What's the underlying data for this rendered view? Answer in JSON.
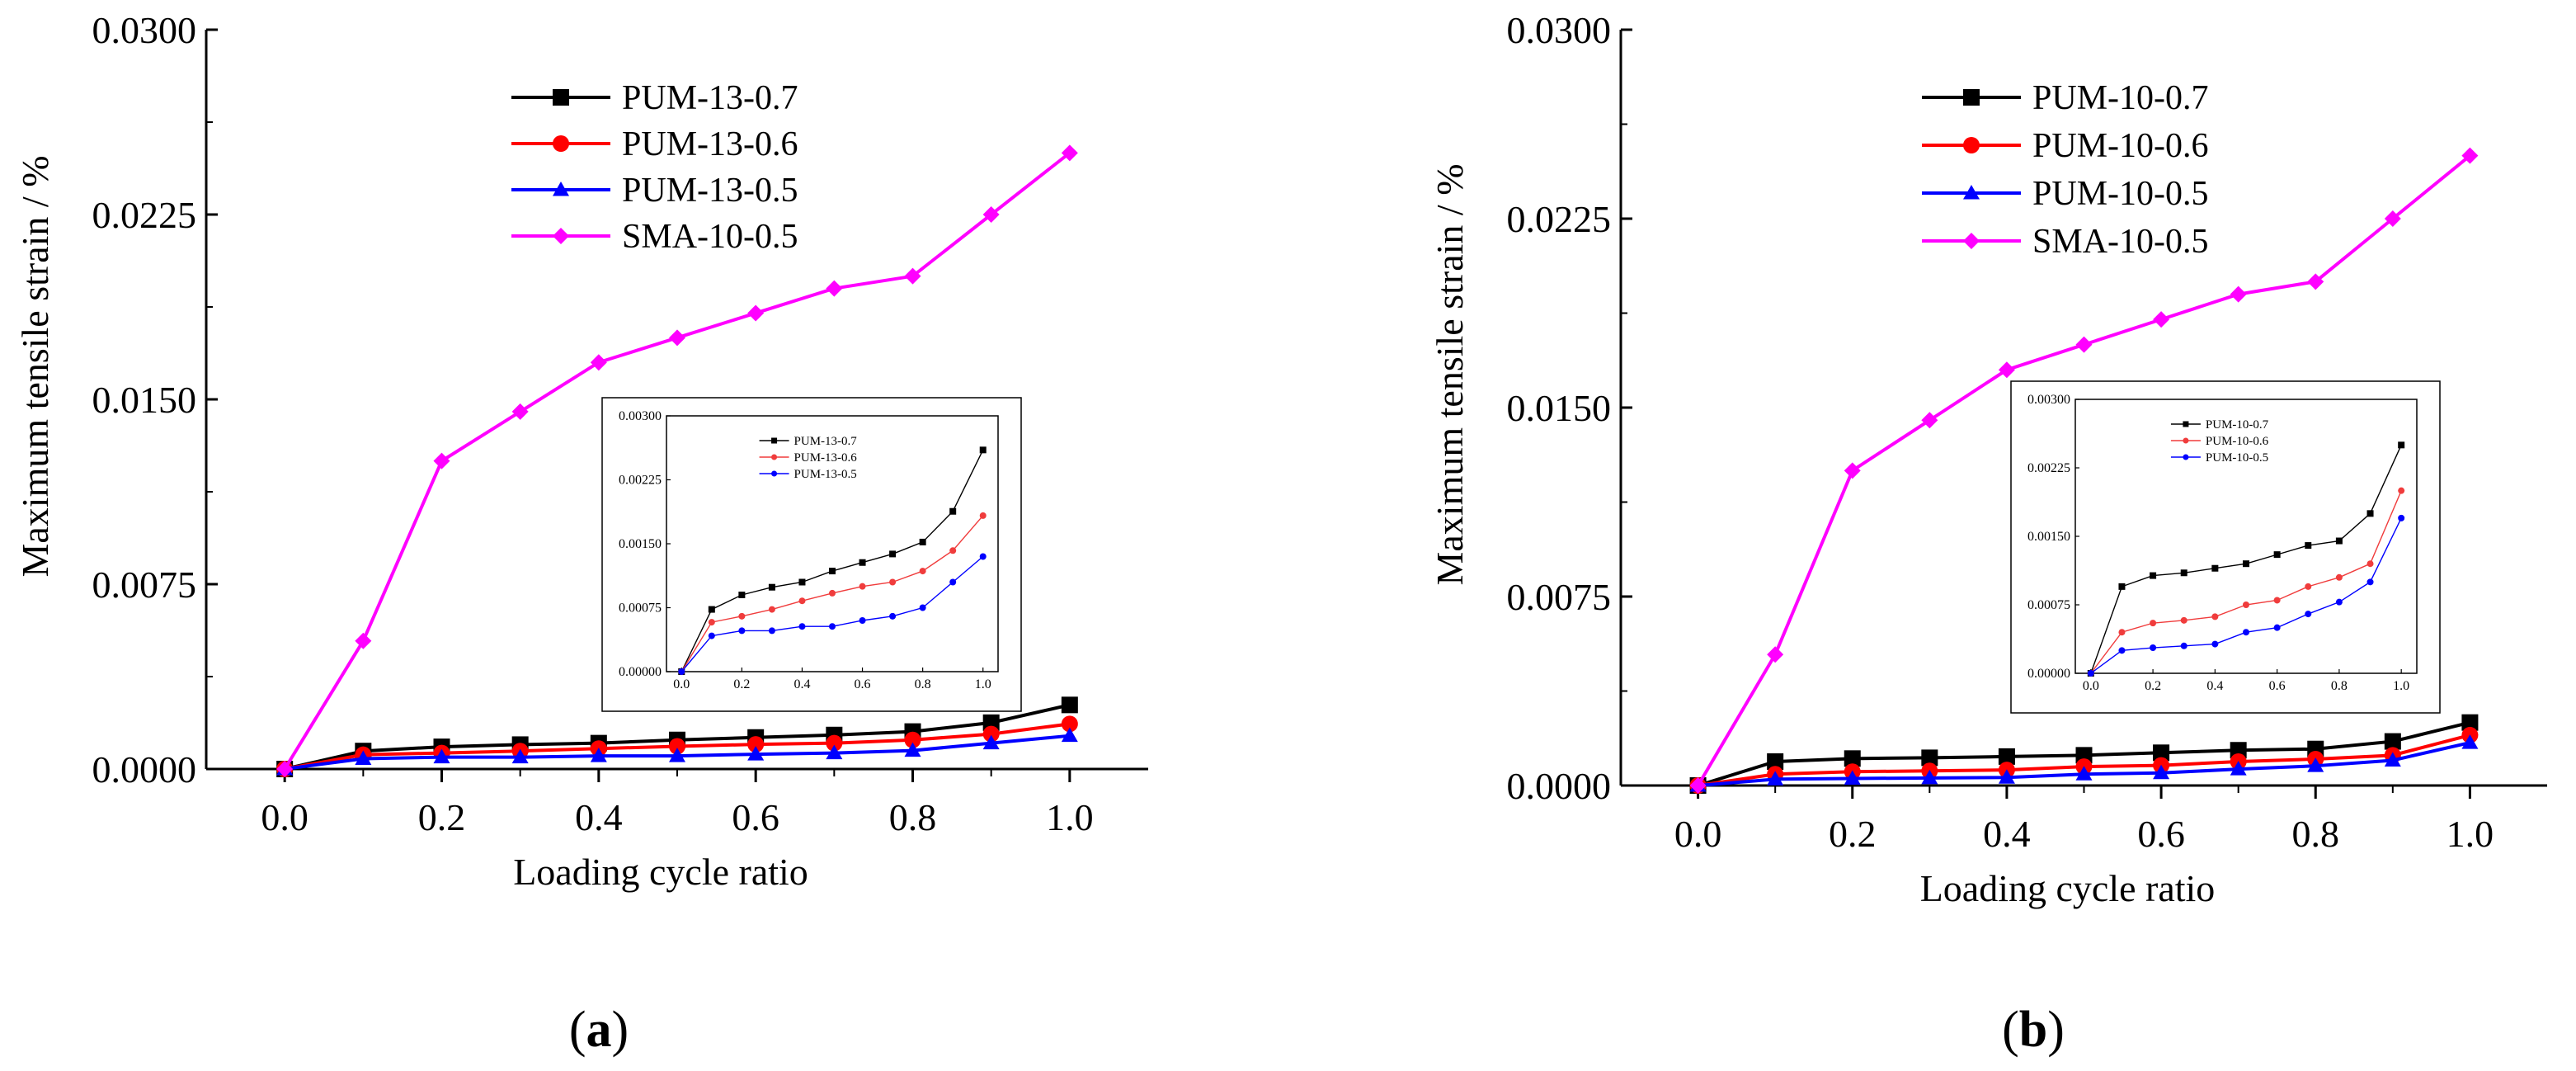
{
  "figure": {
    "panels": [
      {
        "label_text": "(a)",
        "label_letter": "a"
      },
      {
        "label_text": "(b)",
        "label_letter": "b"
      }
    ]
  },
  "colors": {
    "black": "#000000",
    "red": "#ff0000",
    "blue": "#0000ff",
    "magenta": "#ff00ff",
    "inset_red": "#f03c3c",
    "inset_blue": "#0000ff"
  },
  "chart_data": [
    {
      "type": "line",
      "panel": "a",
      "title": "",
      "xlabel": "Loading cycle ratio",
      "ylabel": "Maximum tensile strain / %",
      "xlim": [
        -0.1,
        1.1
      ],
      "ylim": [
        0,
        0.03
      ],
      "xticks": [
        0.0,
        0.2,
        0.4,
        0.6,
        0.8,
        1.0
      ],
      "xtick_labels": [
        "0.0",
        "0.2",
        "0.4",
        "0.6",
        "0.8",
        "1.0"
      ],
      "yticks": [
        0,
        0.0075,
        0.015,
        0.0225,
        0.03
      ],
      "ytick_labels": [
        "0.0000",
        "0.0075",
        "0.0150",
        "0.0225",
        "0.0300"
      ],
      "legend_position": "top-center",
      "x": [
        0.0,
        0.1,
        0.2,
        0.3,
        0.4,
        0.5,
        0.6,
        0.7,
        0.8,
        0.9,
        1.0
      ],
      "series": [
        {
          "name": "PUM-13-0.7",
          "color": "#000000",
          "marker": "square",
          "values": [
            0.0,
            0.00073,
            0.0009,
            0.00099,
            0.00105,
            0.00118,
            0.00128,
            0.00138,
            0.00152,
            0.00188,
            0.0026
          ]
        },
        {
          "name": "PUM-13-0.6",
          "color": "#ff0000",
          "marker": "circle",
          "values": [
            0.0,
            0.00058,
            0.00065,
            0.00073,
            0.00083,
            0.00092,
            0.001,
            0.00105,
            0.00118,
            0.00142,
            0.00183
          ]
        },
        {
          "name": "PUM-13-0.5",
          "color": "#0000ff",
          "marker": "triangle",
          "values": [
            0.0,
            0.00042,
            0.00048,
            0.00048,
            0.00053,
            0.00053,
            0.0006,
            0.00065,
            0.00075,
            0.00105,
            0.00135
          ]
        },
        {
          "name": "SMA-10-0.5",
          "color": "#ff00ff",
          "marker": "diamond",
          "values": [
            0.0,
            0.0052,
            0.0125,
            0.0145,
            0.0165,
            0.0175,
            0.0185,
            0.0195,
            0.02,
            0.0225,
            0.025
          ]
        }
      ],
      "inset": {
        "xlim": [
          -0.05,
          1.05
        ],
        "ylim": [
          0,
          0.003
        ],
        "xticks": [
          0.0,
          0.2,
          0.4,
          0.6,
          0.8,
          1.0
        ],
        "xtick_labels": [
          "0.0",
          "0.2",
          "0.4",
          "0.6",
          "0.8",
          "1.0"
        ],
        "yticks": [
          0,
          0.00075,
          0.0015,
          0.00225,
          0.003
        ],
        "ytick_labels": [
          "0.00000",
          "0.00075",
          "0.00150",
          "0.00225",
          "0.00300"
        ],
        "series": [
          {
            "name": "PUM-13-0.7",
            "color": "#000000",
            "marker": "square",
            "values": [
              0.0,
              0.00073,
              0.0009,
              0.00099,
              0.00105,
              0.00118,
              0.00128,
              0.00138,
              0.00152,
              0.00188,
              0.0026
            ]
          },
          {
            "name": "PUM-13-0.6",
            "color": "#f03c3c",
            "marker": "circle",
            "values": [
              0.0,
              0.00058,
              0.00065,
              0.00073,
              0.00083,
              0.00092,
              0.001,
              0.00105,
              0.00118,
              0.00142,
              0.00183
            ]
          },
          {
            "name": "PUM-13-0.5",
            "color": "#0000ff",
            "marker": "circle",
            "values": [
              0.0,
              0.00042,
              0.00048,
              0.00048,
              0.00053,
              0.00053,
              0.0006,
              0.00065,
              0.00075,
              0.00105,
              0.00135
            ]
          }
        ]
      }
    },
    {
      "type": "line",
      "panel": "b",
      "title": "",
      "xlabel": "Loading cycle ratio",
      "ylabel": "Maximum tensile strain / %",
      "xlim": [
        -0.1,
        1.1
      ],
      "ylim": [
        0,
        0.03
      ],
      "xticks": [
        0.0,
        0.2,
        0.4,
        0.6,
        0.8,
        1.0
      ],
      "xtick_labels": [
        "0.0",
        "0.2",
        "0.4",
        "0.6",
        "0.8",
        "1.0"
      ],
      "yticks": [
        0,
        0.0075,
        0.015,
        0.0225,
        0.03
      ],
      "ytick_labels": [
        "0.0000",
        "0.0075",
        "0.0150",
        "0.0225",
        "0.0300"
      ],
      "legend_position": "top-center",
      "x": [
        0.0,
        0.1,
        0.2,
        0.3,
        0.4,
        0.5,
        0.6,
        0.7,
        0.8,
        0.9,
        1.0
      ],
      "series": [
        {
          "name": "PUM-10-0.7",
          "color": "#000000",
          "marker": "square",
          "values": [
            0.0,
            0.00095,
            0.00107,
            0.0011,
            0.00115,
            0.0012,
            0.0013,
            0.0014,
            0.00145,
            0.00175,
            0.0025
          ]
        },
        {
          "name": "PUM-10-0.6",
          "color": "#ff0000",
          "marker": "circle",
          "values": [
            0.0,
            0.00045,
            0.00055,
            0.00058,
            0.00062,
            0.00075,
            0.0008,
            0.00095,
            0.00105,
            0.0012,
            0.002
          ]
        },
        {
          "name": "PUM-10-0.5",
          "color": "#0000ff",
          "marker": "triangle",
          "values": [
            0.0,
            0.00025,
            0.00028,
            0.0003,
            0.00032,
            0.00045,
            0.0005,
            0.00065,
            0.00078,
            0.001,
            0.0017
          ]
        },
        {
          "name": "SMA-10-0.5",
          "color": "#ff00ff",
          "marker": "diamond",
          "values": [
            0.0,
            0.0052,
            0.0125,
            0.0145,
            0.0165,
            0.0175,
            0.0185,
            0.0195,
            0.02,
            0.0225,
            0.025
          ]
        }
      ],
      "inset": {
        "xlim": [
          -0.05,
          1.05
        ],
        "ylim": [
          0,
          0.003
        ],
        "xticks": [
          0.0,
          0.2,
          0.4,
          0.6,
          0.8,
          1.0
        ],
        "xtick_labels": [
          "0.0",
          "0.2",
          "0.4",
          "0.6",
          "0.8",
          "1.0"
        ],
        "yticks": [
          0,
          0.00075,
          0.0015,
          0.00225,
          0.003
        ],
        "ytick_labels": [
          "0.00000",
          "0.00075",
          "0.00150",
          "0.00225",
          "0.00300"
        ],
        "series": [
          {
            "name": "PUM-10-0.7",
            "color": "#000000",
            "marker": "square",
            "values": [
              0.0,
              0.00095,
              0.00107,
              0.0011,
              0.00115,
              0.0012,
              0.0013,
              0.0014,
              0.00145,
              0.00175,
              0.0025
            ]
          },
          {
            "name": "PUM-10-0.6",
            "color": "#f03c3c",
            "marker": "circle",
            "values": [
              0.0,
              0.00045,
              0.00055,
              0.00058,
              0.00062,
              0.00075,
              0.0008,
              0.00095,
              0.00105,
              0.0012,
              0.002
            ]
          },
          {
            "name": "PUM-10-0.5",
            "color": "#0000ff",
            "marker": "circle",
            "values": [
              0.0,
              0.00025,
              0.00028,
              0.0003,
              0.00032,
              0.00045,
              0.0005,
              0.00065,
              0.00078,
              0.001,
              0.0017
            ]
          }
        ]
      }
    }
  ]
}
